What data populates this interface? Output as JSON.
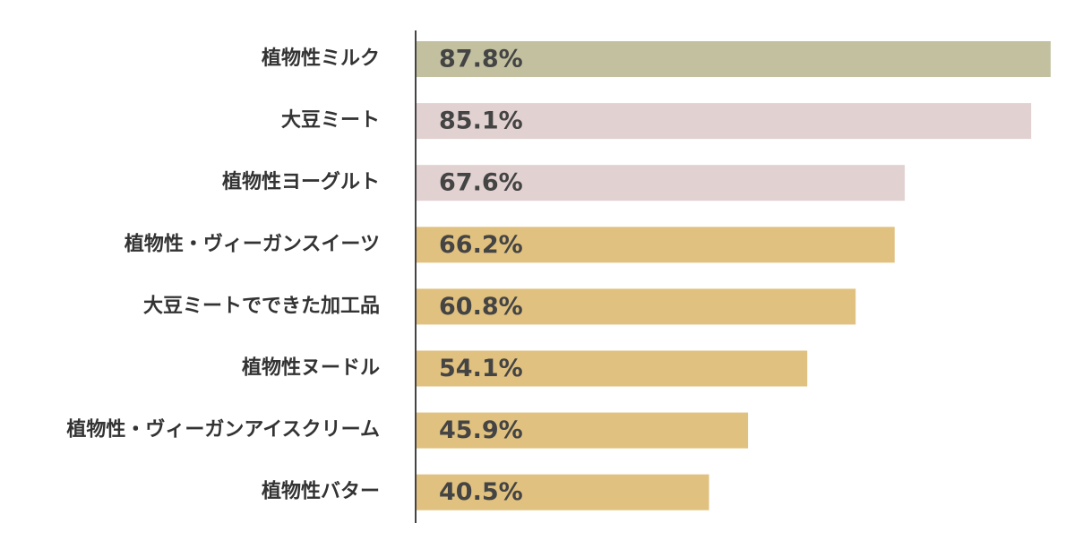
{
  "chart_data": {
    "type": "bar",
    "orientation": "horizontal",
    "categories": [
      "植物性ミルク",
      "大豆ミート",
      "植物性ヨーグルト",
      "植物性・ヴィーガンスイーツ",
      "大豆ミートでできた加工品",
      "植物性ヌードル",
      "植物性・ヴィーガンアイスクリーム",
      "植物性バター"
    ],
    "values": [
      87.8,
      85.1,
      67.6,
      66.2,
      60.8,
      54.1,
      45.9,
      40.5
    ],
    "value_labels": [
      "87.8%",
      "85.1%",
      "67.6%",
      "66.2%",
      "60.8%",
      "54.1%",
      "45.9%",
      "40.5%"
    ],
    "colors": [
      "#c2c09f",
      "#e2d1d1",
      "#e2d1d1",
      "#e1c17f",
      "#e1c17f",
      "#e1c17f",
      "#e1c17f",
      "#e1c17f"
    ]
  }
}
